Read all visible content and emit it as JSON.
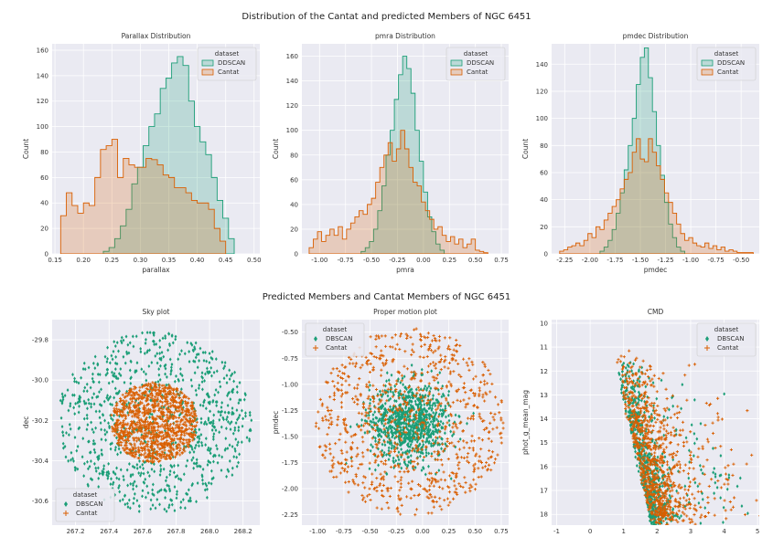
{
  "figure": {
    "title_top": "Distribution of the Cantat and predicted Members of NGC 6451",
    "title_bottom": "Predicted Members and Cantat Members of NGC 6451"
  },
  "colors": {
    "dbscan": "#1b9e77",
    "cantat": "#d95f02",
    "panel_bg": "#eaeaf2",
    "grid": "#ffffff"
  },
  "chart_data": [
    {
      "id": "parallax",
      "type": "area",
      "title": "Parallax Distribution",
      "xlabel": "parallax",
      "ylabel": "Count",
      "xlim": [
        0.145,
        0.51
      ],
      "ylim": [
        0,
        165
      ],
      "xticks": [
        0.15,
        0.2,
        0.25,
        0.3,
        0.35,
        0.4,
        0.45,
        0.5
      ],
      "xticklabels": [
        "0.15",
        "0.20",
        "0.25",
        "0.30",
        "0.35",
        "0.40",
        "0.45",
        "0.50"
      ],
      "yticks": [
        0,
        20,
        40,
        60,
        80,
        100,
        120,
        140,
        160
      ],
      "yticklabels": [
        "0",
        "20",
        "40",
        "60",
        "80",
        "100",
        "120",
        "140",
        "160"
      ],
      "legend": {
        "title": "dataset",
        "entries": [
          "DDSCAN",
          "Cantat"
        ],
        "loc": "upper right"
      },
      "grid": true,
      "series": [
        {
          "name": "DDSCAN",
          "bin_start": 0.235,
          "bin_width": 0.01,
          "values": [
            2,
            5,
            12,
            22,
            35,
            55,
            68,
            85,
            100,
            110,
            130,
            138,
            150,
            155,
            148,
            120,
            100,
            88,
            78,
            60,
            42,
            28,
            12
          ]
        },
        {
          "name": "Cantat",
          "bin_start": 0.16,
          "bin_width": 0.01,
          "values": [
            30,
            48,
            38,
            32,
            40,
            38,
            60,
            82,
            85,
            90,
            60,
            75,
            70,
            68,
            68,
            75,
            74,
            70,
            62,
            60,
            52,
            52,
            48,
            42,
            40,
            40,
            35,
            20,
            10
          ]
        }
      ]
    },
    {
      "id": "pmra",
      "type": "area",
      "title": "pmra Distribution",
      "xlabel": "pmra",
      "ylabel": "Count",
      "xlim": [
        -1.17,
        0.82
      ],
      "ylim": [
        0,
        170
      ],
      "xticks": [
        -1.0,
        -0.75,
        -0.5,
        -0.25,
        0.0,
        0.25,
        0.5,
        0.75
      ],
      "xticklabels": [
        "-1.00",
        "-0.75",
        "-0.50",
        "-0.25",
        "0.00",
        "0.25",
        "0.50",
        "0.75"
      ],
      "yticks": [
        0,
        20,
        40,
        60,
        80,
        100,
        120,
        140,
        160
      ],
      "yticklabels": [
        "0",
        "20",
        "40",
        "60",
        "80",
        "100",
        "120",
        "140",
        "160"
      ],
      "legend": {
        "title": "dataset",
        "entries": [
          "DDSCAN",
          "Cantat"
        ],
        "loc": "upper right"
      },
      "grid": true,
      "series": [
        {
          "name": "DDSCAN",
          "bin_start": -0.6,
          "bin_width": 0.04,
          "values": [
            2,
            5,
            10,
            20,
            35,
            55,
            80,
            100,
            125,
            145,
            160,
            150,
            130,
            100,
            75,
            50,
            30,
            18,
            8,
            3
          ]
        },
        {
          "name": "Cantat",
          "bin_start": -1.1,
          "bin_width": 0.04,
          "values": [
            5,
            12,
            18,
            10,
            15,
            20,
            15,
            22,
            12,
            20,
            25,
            30,
            35,
            32,
            40,
            45,
            58,
            70,
            80,
            90,
            75,
            85,
            100,
            85,
            70,
            58,
            55,
            42,
            35,
            28,
            20,
            22,
            15,
            10,
            14,
            8,
            12,
            5,
            8,
            12,
            3,
            2,
            1
          ]
        }
      ]
    },
    {
      "id": "pmdec",
      "type": "area",
      "title": "pmdec Distribution",
      "xlabel": "pmdec",
      "ylabel": "Count",
      "xlim": [
        -2.38,
        -0.32
      ],
      "ylim": [
        0,
        155
      ],
      "xticks": [
        -2.25,
        -2.0,
        -1.75,
        -1.5,
        -1.25,
        -1.0,
        -0.75,
        -0.5
      ],
      "xticklabels": [
        "-2.25",
        "-2.00",
        "-1.75",
        "-1.50",
        "-1.25",
        "-1.00",
        "-0.75",
        "-0.50"
      ],
      "yticks": [
        0,
        20,
        40,
        60,
        80,
        100,
        120,
        140
      ],
      "yticklabels": [
        "0",
        "20",
        "40",
        "60",
        "80",
        "100",
        "120",
        "140"
      ],
      "legend": {
        "title": "dataset",
        "entries": [
          "DDSCAN",
          "Cantat"
        ],
        "loc": "upper right"
      },
      "grid": true,
      "series": [
        {
          "name": "DDSCAN",
          "bin_start": -1.9,
          "bin_width": 0.04,
          "values": [
            2,
            5,
            10,
            18,
            30,
            45,
            62,
            80,
            100,
            125,
            145,
            152,
            130,
            105,
            80,
            58,
            38,
            22,
            12,
            5,
            2
          ]
        },
        {
          "name": "Cantat",
          "bin_start": -2.3,
          "bin_width": 0.04,
          "values": [
            2,
            3,
            5,
            6,
            8,
            6,
            10,
            15,
            12,
            20,
            18,
            25,
            30,
            35,
            40,
            48,
            55,
            60,
            75,
            85,
            70,
            68,
            85,
            75,
            65,
            55,
            45,
            38,
            30,
            22,
            15,
            10,
            12,
            8,
            6,
            5,
            8,
            4,
            6,
            3,
            5,
            2,
            3,
            2,
            1,
            1,
            1,
            1
          ]
        }
      ]
    },
    {
      "id": "sky",
      "type": "scatter",
      "title": "Sky plot",
      "xlabel": "ra",
      "ylabel": "dec",
      "xlim": [
        267.06,
        268.3
      ],
      "ylim": [
        -30.72,
        -29.7
      ],
      "xticks": [
        267.2,
        267.4,
        267.6,
        267.8,
        268.0,
        268.2
      ],
      "xticklabels": [
        "267.2",
        "267.4",
        "267.6",
        "267.8",
        "268.0",
        "268.2"
      ],
      "yticks": [
        -29.8,
        -30.0,
        -30.2,
        -30.4,
        -30.6
      ],
      "yticklabels": [
        "-29.8",
        "-30.0",
        "-30.2",
        "-30.4",
        "-30.6"
      ],
      "legend": {
        "title": "dataset",
        "entries": [
          "DBSCAN",
          "Cantat"
        ],
        "loc": "lower left"
      },
      "grid": true,
      "series": [
        {
          "name": "DBSCAN",
          "n": 900,
          "center": [
            267.67,
            -30.21
          ],
          "radius": [
            0.58,
            0.45
          ],
          "kind": "disk"
        },
        {
          "name": "Cantat",
          "n": 1100,
          "center": [
            267.67,
            -30.21
          ],
          "radius": [
            0.26,
            0.2
          ],
          "kind": "disk"
        }
      ]
    },
    {
      "id": "pm",
      "type": "scatter",
      "title": "Proper motion plot",
      "xlabel": "pmra",
      "ylabel": "pmdec",
      "xlim": [
        -1.15,
        0.82
      ],
      "ylim": [
        -2.35,
        -0.38
      ],
      "xticks": [
        -1.0,
        -0.75,
        -0.5,
        -0.25,
        0.0,
        0.25,
        0.5,
        0.75
      ],
      "xticklabels": [
        "-1.00",
        "-0.75",
        "-0.50",
        "-0.25",
        "0.00",
        "0.25",
        "0.50",
        "0.75"
      ],
      "yticks": [
        -0.5,
        -0.75,
        -1.0,
        -1.25,
        -1.5,
        -1.75,
        -2.0,
        -2.25
      ],
      "yticklabels": [
        "-0.50",
        "-0.75",
        "-1.00",
        "-1.25",
        "-1.50",
        "-1.75",
        "-2.00",
        "-2.25"
      ],
      "legend": {
        "title": "dataset",
        "entries": [
          "DBSCAN",
          "Cantat"
        ],
        "loc": "upper left"
      },
      "grid": true,
      "series": [
        {
          "name": "DBSCAN",
          "n": 900,
          "center": [
            -0.12,
            -1.36
          ],
          "radius": [
            0.42,
            0.42
          ],
          "kind": "gauss"
        },
        {
          "name": "Cantat",
          "n": 900,
          "center": [
            -0.12,
            -1.36
          ],
          "radius": [
            0.9,
            0.9
          ],
          "kind": "disk"
        }
      ]
    },
    {
      "id": "cmd",
      "type": "scatter",
      "title": "CMD",
      "xlabel": "bp_rp",
      "ylabel": "phot_g_mean_mag",
      "xlim": [
        -1.15,
        5.05
      ],
      "ylim": [
        18.45,
        9.85
      ],
      "y_inverted": true,
      "xticks": [
        -1,
        0,
        1,
        2,
        3,
        4,
        5
      ],
      "xticklabels": [
        "-1",
        "0",
        "1",
        "2",
        "3",
        "4",
        "5"
      ],
      "yticks": [
        10,
        11,
        12,
        13,
        14,
        15,
        16,
        17,
        18
      ],
      "yticklabels": [
        "10",
        "11",
        "12",
        "13",
        "14",
        "15",
        "16",
        "17",
        "18"
      ],
      "legend": {
        "title": "dataset",
        "entries": [
          "DBSCAN",
          "Cantat"
        ],
        "loc": "upper right"
      },
      "grid": true,
      "series": [
        {
          "name": "DBSCAN",
          "n": 700,
          "kind": "cmd"
        },
        {
          "name": "Cantat",
          "n": 900,
          "kind": "cmd"
        }
      ]
    }
  ]
}
